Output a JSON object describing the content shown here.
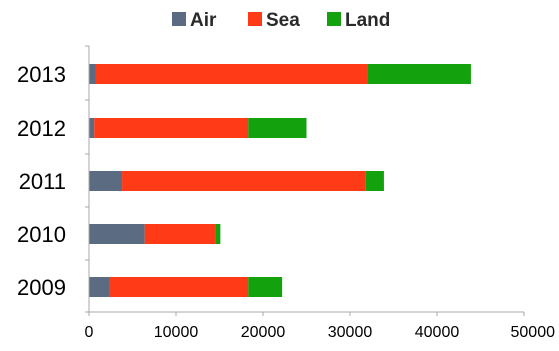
{
  "chart_data": {
    "type": "bar",
    "orientation": "horizontal",
    "stacked": true,
    "categories": [
      "2013",
      "2012",
      "2011",
      "2010",
      "2009"
    ],
    "series": [
      {
        "name": "Air",
        "color": "#5a6b82",
        "values": [
          800,
          600,
          3800,
          6400,
          2300
        ]
      },
      {
        "name": "Sea",
        "color": "#ff3a17",
        "values": [
          31200,
          17700,
          28000,
          8100,
          16000
        ]
      },
      {
        "name": "Land",
        "color": "#13a10e",
        "values": [
          11900,
          6700,
          2100,
          600,
          3900
        ]
      }
    ],
    "x_ticks": [
      "0",
      "10000",
      "20000",
      "30000",
      "40000",
      "50000"
    ],
    "xlim": [
      0,
      50000
    ],
    "grid": false,
    "legend_position": "top",
    "title": "",
    "xlabel": "",
    "ylabel": ""
  }
}
